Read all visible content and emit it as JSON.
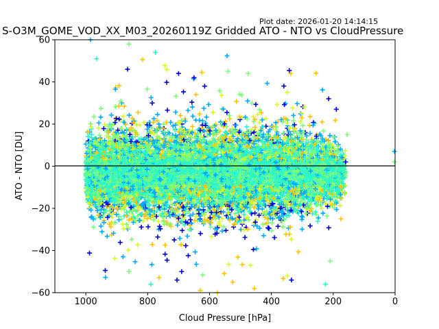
{
  "chart_data": {
    "type": "scatter",
    "plot_date": "Plot date: 2026-01-20 14:14:15",
    "title": "S-O3M_GOME_VOD_XX_M03_20260119Z Gridded ATO - NTO vs CloudPressure",
    "xlabel": "Cloud Pressure [hPa]",
    "ylabel": "ATO - NTO [DU]",
    "xlim": [
      1100,
      0
    ],
    "ylim": [
      -60,
      60
    ],
    "x_reversed": true,
    "x_ticks": [
      1000,
      800,
      600,
      400,
      200,
      0
    ],
    "y_ticks": [
      -60,
      -40,
      -20,
      0,
      20,
      40,
      60
    ],
    "x_tick_labels": [
      "1000",
      "800",
      "600",
      "400",
      "200",
      "0"
    ],
    "y_tick_labels": [
      "−60",
      "−40",
      "−20",
      "0",
      "20",
      "40",
      "60"
    ],
    "reference_line_y": 0,
    "marker": "+",
    "grid": false,
    "legend": "none",
    "colors": [
      "#0000cd",
      "#00a8ff",
      "#2ef5c8",
      "#7dfc7a",
      "#d4fa2e",
      "#ffc300"
    ],
    "cloud": {
      "x_range": [
        1000,
        160
      ],
      "core_spread_du": 10,
      "point_count_estimate": 9000
    },
    "outliers": [
      {
        "x": 985,
        "y": 60,
        "color": "#00a8ff"
      },
      {
        "x": 860,
        "y": 58,
        "color": "#7dfc7a"
      },
      {
        "x": 775,
        "y": 54,
        "color": "#2ef5c8"
      },
      {
        "x": 965,
        "y": 51,
        "color": "#2ef5c8"
      },
      {
        "x": 540,
        "y": 45,
        "color": "#7dfc7a"
      },
      {
        "x": 475,
        "y": 44,
        "color": "#7dfc7a"
      },
      {
        "x": 700,
        "y": 44,
        "color": "#0000cd"
      },
      {
        "x": 865,
        "y": 46,
        "color": "#0000cd"
      },
      {
        "x": 650,
        "y": 42,
        "color": "#0000cd"
      },
      {
        "x": 190,
        "y": 27,
        "color": "#0000cd"
      },
      {
        "x": 215,
        "y": 32,
        "color": "#0000cd"
      },
      {
        "x": 155,
        "y": 15,
        "color": "#7dfc7a"
      },
      {
        "x": 160,
        "y": 2,
        "color": "#0000cd"
      },
      {
        "x": 2,
        "y": 7,
        "color": "#00a8ff"
      },
      {
        "x": 2,
        "y": 2,
        "color": "#7dfc7a"
      },
      {
        "x": 175,
        "y": -25,
        "color": "#ffc300"
      },
      {
        "x": 210,
        "y": -45,
        "color": "#7dfc7a"
      },
      {
        "x": 225,
        "y": -56,
        "color": "#2ef5c8"
      },
      {
        "x": 575,
        "y": -60,
        "color": "#ffc300"
      },
      {
        "x": 630,
        "y": -59,
        "color": "#ffc300"
      },
      {
        "x": 455,
        "y": -58,
        "color": "#ffc300"
      },
      {
        "x": 790,
        "y": -56,
        "color": "#2ef5c8"
      },
      {
        "x": 525,
        "y": -55,
        "color": "#ffc300"
      },
      {
        "x": 705,
        "y": -54,
        "color": "#0000cd"
      },
      {
        "x": 335,
        "y": -54,
        "color": "#0000cd"
      },
      {
        "x": 860,
        "y": -50,
        "color": "#7dfc7a"
      },
      {
        "x": 690,
        "y": -50,
        "color": "#0000cd"
      }
    ]
  }
}
